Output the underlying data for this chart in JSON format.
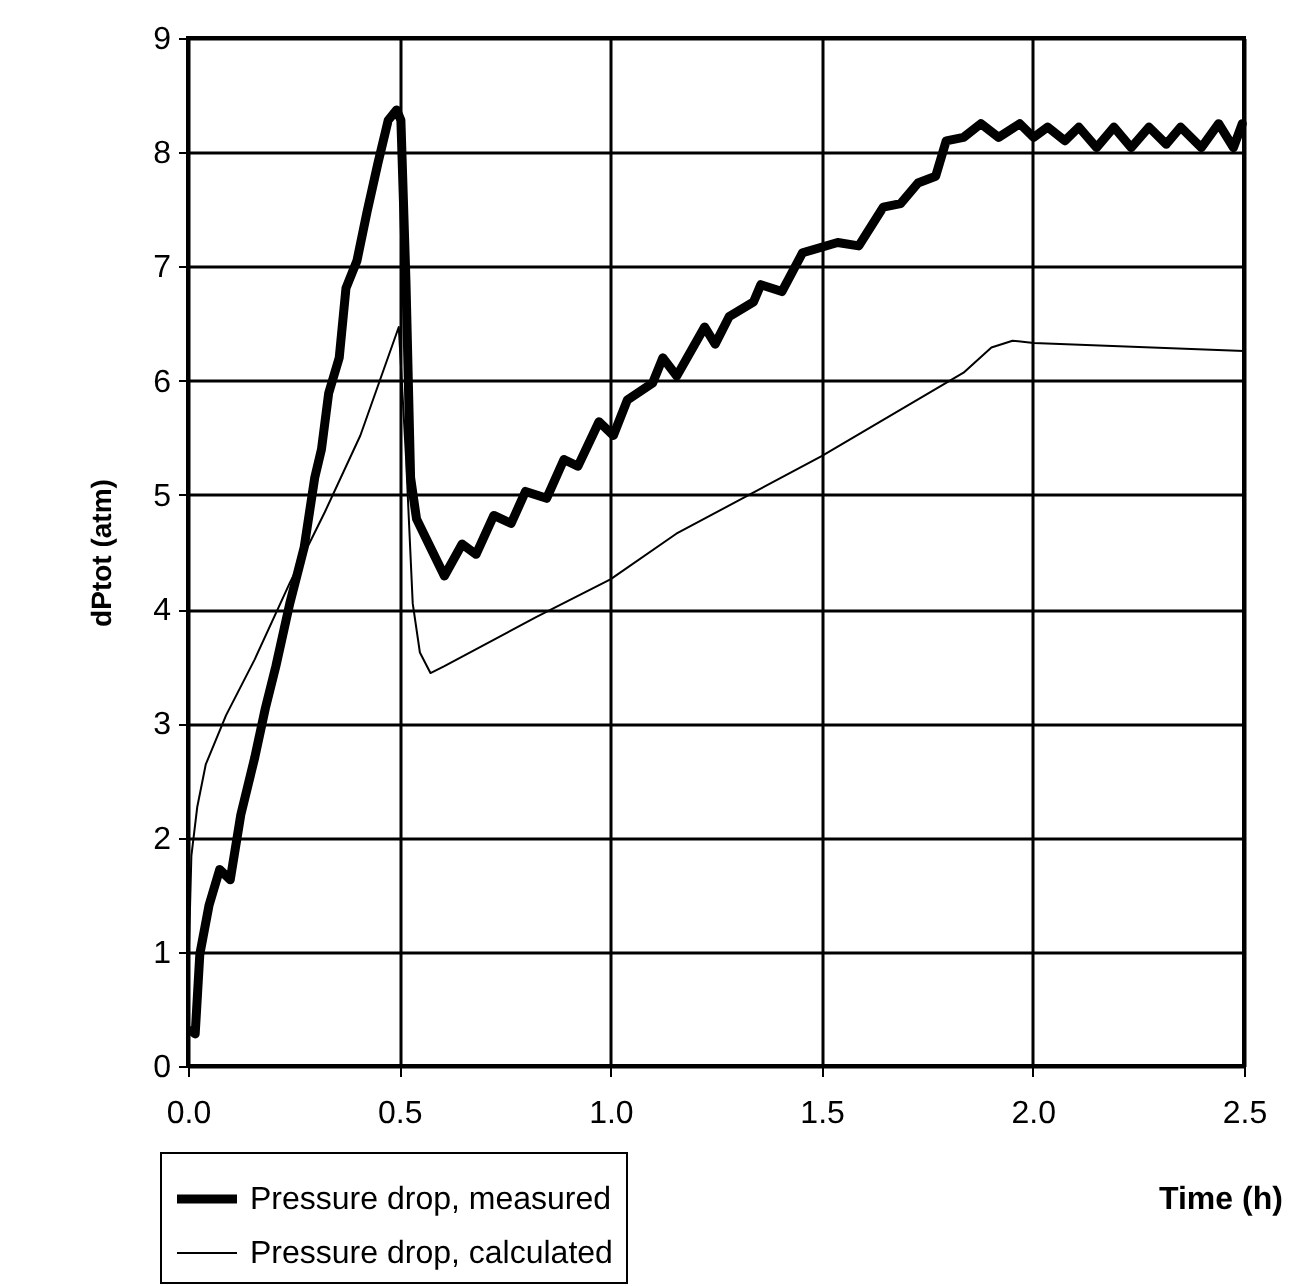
{
  "chart_data": {
    "type": "line",
    "xlabel": "Time (h)",
    "ylabel": "dPtot (atm)",
    "xlim": [
      0,
      2.5
    ],
    "ylim": [
      0,
      9
    ],
    "xticks": [
      {
        "value": 0,
        "label": "0.0"
      },
      {
        "value": 0.5,
        "label": "0.5"
      },
      {
        "value": 1,
        "label": "1.0"
      },
      {
        "value": 1.5,
        "label": "1.5"
      },
      {
        "value": 2,
        "label": "2.0"
      },
      {
        "value": 2.5,
        "label": "2.5"
      }
    ],
    "yticks": [
      0,
      1,
      2,
      3,
      4,
      5,
      6,
      7,
      8,
      9
    ],
    "grid": true,
    "legend": "bottom",
    "marker": "none",
    "line_style": "solid",
    "series": [
      {
        "name": "Pressure drop, measured",
        "color": "#000000",
        "x": [
          0.008,
          0.017,
          0.028,
          0.05,
          0.075,
          0.1,
          0.125,
          0.158,
          0.183,
          0.208,
          0.241,
          0.275,
          0.3,
          0.316,
          0.333,
          0.358,
          0.374,
          0.4,
          0.424,
          0.45,
          0.474,
          0.494,
          0.504,
          0.516,
          0.527,
          0.541,
          0.574,
          0.607,
          0.649,
          0.682,
          0.724,
          0.765,
          0.799,
          0.849,
          0.89,
          0.923,
          0.973,
          1.007,
          1.04,
          1.1,
          1.124,
          1.157,
          1.223,
          1.248,
          1.281,
          1.339,
          1.356,
          1.406,
          1.455,
          1.538,
          1.588,
          1.646,
          1.687,
          1.728,
          1.77,
          1.795,
          1.836,
          1.877,
          1.919,
          1.969,
          2.002,
          2.035,
          2.076,
          2.109,
          2.151,
          2.192,
          2.233,
          2.275,
          2.316,
          2.35,
          2.399,
          2.44,
          2.475,
          2.496
        ],
        "values": [
          0.31,
          0.28,
          0.98,
          1.41,
          1.72,
          1.63,
          2.2,
          2.7,
          3.13,
          3.5,
          4.05,
          4.54,
          5.15,
          5.4,
          5.89,
          6.2,
          6.81,
          7.05,
          7.48,
          7.91,
          8.28,
          8.37,
          8.28,
          6.87,
          5.15,
          4.79,
          4.54,
          4.29,
          4.57,
          4.48,
          4.82,
          4.75,
          5.03,
          4.97,
          5.31,
          5.25,
          5.64,
          5.52,
          5.83,
          5.98,
          6.2,
          6.04,
          6.47,
          6.32,
          6.56,
          6.69,
          6.84,
          6.78,
          7.12,
          7.21,
          7.18,
          7.52,
          7.55,
          7.73,
          7.79,
          8.1,
          8.13,
          8.25,
          8.13,
          8.25,
          8.13,
          8.22,
          8.1,
          8.22,
          8.04,
          8.22,
          8.04,
          8.22,
          8.07,
          8.22,
          8.04,
          8.25,
          8.04,
          8.25
        ]
      },
      {
        "name": "Pressure drop, calculated",
        "color": "#000000",
        "x": [
          0.002,
          0.008,
          0.022,
          0.042,
          0.09,
          0.158,
          0.241,
          0.324,
          0.408,
          0.499,
          0.516,
          0.532,
          0.549,
          0.574,
          0.607,
          0.824,
          1.0,
          1.156,
          1.5,
          1.836,
          1.902,
          1.952,
          2.002,
          2.5
        ],
        "values": [
          1.0,
          1.84,
          2.27,
          2.64,
          3.07,
          3.56,
          4.23,
          4.85,
          5.52,
          6.47,
          5.34,
          4.05,
          3.62,
          3.44,
          3.5,
          3.93,
          4.26,
          4.66,
          5.34,
          6.07,
          6.29,
          6.35,
          6.33,
          6.26
        ]
      }
    ]
  }
}
